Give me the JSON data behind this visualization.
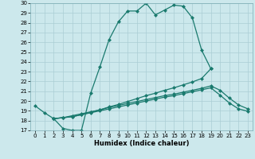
{
  "xlabel": "Humidex (Indice chaleur)",
  "xlim": [
    -0.5,
    23.5
  ],
  "ylim": [
    17,
    30
  ],
  "xticks": [
    0,
    1,
    2,
    3,
    4,
    5,
    6,
    7,
    8,
    9,
    10,
    11,
    12,
    13,
    14,
    15,
    16,
    17,
    18,
    19,
    20,
    21,
    22,
    23
  ],
  "yticks": [
    17,
    18,
    19,
    20,
    21,
    22,
    23,
    24,
    25,
    26,
    27,
    28,
    29,
    30
  ],
  "line_color": "#1a7a6e",
  "bg_color": "#cce8ec",
  "grid_color": "#aacdd4",
  "line1_x": [
    0,
    1,
    2,
    3,
    4,
    5,
    6,
    7,
    8,
    9,
    10,
    11,
    12,
    13,
    14,
    15,
    16,
    17,
    18,
    19
  ],
  "line1_y": [
    19.5,
    18.8,
    18.2,
    17.2,
    17.0,
    17.0,
    20.8,
    23.5,
    26.3,
    28.1,
    29.2,
    29.2,
    30.0,
    28.8,
    29.3,
    29.8,
    29.7,
    28.5,
    25.2,
    23.3
  ],
  "line2_x": [
    2,
    3,
    4,
    5,
    6,
    7,
    8,
    9,
    10,
    11,
    12,
    13,
    14,
    15,
    16,
    17,
    18,
    19,
    20,
    21,
    22,
    23
  ],
  "line2_y": [
    18.2,
    18.3,
    18.5,
    18.7,
    18.9,
    19.1,
    19.35,
    19.55,
    19.75,
    19.95,
    20.15,
    20.35,
    20.55,
    20.7,
    20.9,
    21.1,
    21.3,
    21.55,
    21.1,
    20.3,
    19.6,
    19.2
  ],
  "line3_x": [
    2,
    3,
    4,
    5,
    6,
    7,
    8,
    9,
    10,
    11,
    12,
    13,
    14,
    15,
    16,
    17,
    18,
    19,
    20,
    21,
    22,
    23
  ],
  "line3_y": [
    18.2,
    18.3,
    18.4,
    18.6,
    18.8,
    19.0,
    19.2,
    19.4,
    19.6,
    19.8,
    20.0,
    20.2,
    20.4,
    20.55,
    20.75,
    20.95,
    21.15,
    21.35,
    20.6,
    19.8,
    19.2,
    18.95
  ],
  "line4_x": [
    2,
    3,
    4,
    5,
    6,
    7,
    8,
    9,
    10,
    11,
    12,
    13,
    14,
    15,
    16,
    17,
    18,
    19
  ],
  "line4_y": [
    18.2,
    18.3,
    18.4,
    18.6,
    18.85,
    19.1,
    19.4,
    19.65,
    19.95,
    20.25,
    20.55,
    20.8,
    21.1,
    21.35,
    21.65,
    21.95,
    22.3,
    23.3
  ]
}
